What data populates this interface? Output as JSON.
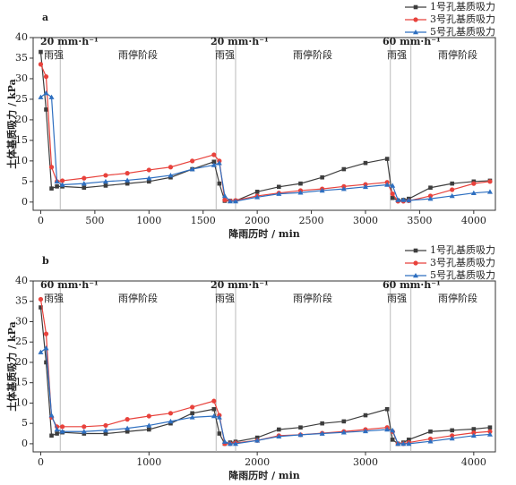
{
  "chart_data": [
    {
      "type": "line",
      "panel_label": "a",
      "xlabel": "降雨历时 / min",
      "ylabel": "土体基质吸力 / kPa",
      "xlim": [
        -70,
        4200
      ],
      "ylim": [
        -2,
        40
      ],
      "xticks": [
        0,
        500,
        1000,
        1500,
        2000,
        2500,
        3000,
        3500,
        4000
      ],
      "yticks": [
        0,
        5,
        10,
        15,
        20,
        25,
        30,
        35,
        40
      ],
      "vlines": [
        180,
        1620,
        1800,
        3230,
        3420
      ],
      "annotations": [
        "20 mm·h⁻¹",
        "雨强",
        "雨停阶段",
        "20 mm·h⁻¹",
        "雨强",
        "雨停阶段",
        "60 mm·h⁻¹",
        "雨强",
        "雨停阶段"
      ],
      "x": [
        0,
        50,
        100,
        150,
        200,
        400,
        600,
        800,
        1000,
        1200,
        1400,
        1600,
        1650,
        1700,
        1750,
        1800,
        2000,
        2200,
        2400,
        2600,
        2800,
        3000,
        3200,
        3250,
        3300,
        3350,
        3400,
        3600,
        3800,
        4000,
        4150
      ],
      "series": [
        {
          "name": "1号孔基质吸力",
          "color": "#3d3d3d",
          "marker": "square",
          "values": [
            36.5,
            22.5,
            3.3,
            3.8,
            3.8,
            3.5,
            4,
            4.5,
            5,
            6,
            8,
            9.8,
            4.5,
            0.3,
            0.3,
            0.3,
            2.5,
            3.7,
            4.5,
            6,
            8,
            9.5,
            10.5,
            1.0,
            0.4,
            0.5,
            0.8,
            3.5,
            4.5,
            5,
            5.2
          ]
        },
        {
          "name": "3号孔基质吸力",
          "color": "#e8423c",
          "marker": "circle",
          "values": [
            33.5,
            30.5,
            8.5,
            5,
            5.2,
            5.8,
            6.5,
            7,
            7.8,
            8.5,
            10,
            11.5,
            10,
            0.5,
            0.3,
            0.4,
            1.5,
            2.2,
            2.8,
            3.2,
            3.8,
            4.3,
            4.8,
            2,
            0.2,
            0.2,
            0.3,
            1.5,
            3,
            4.5,
            5
          ]
        },
        {
          "name": "5号孔基质吸力",
          "color": "#2e6fc0",
          "marker": "triangle",
          "values": [
            25.5,
            26.5,
            25.5,
            5,
            4.2,
            4.5,
            5,
            5.3,
            5.8,
            6.5,
            8,
            9,
            9.5,
            1.5,
            0.2,
            0.2,
            1.2,
            2,
            2.3,
            2.8,
            3.2,
            3.7,
            4.2,
            4,
            0.5,
            0.5,
            0.4,
            0.8,
            1.5,
            2.2,
            2.5
          ]
        }
      ]
    },
    {
      "type": "line",
      "panel_label": "b",
      "xlabel": "降雨历时 / min",
      "ylabel": "土体基质吸力 / kPa",
      "xlim": [
        -70,
        4200
      ],
      "ylim": [
        -2,
        40
      ],
      "xticks": [
        0,
        1000,
        2000,
        3000,
        4000
      ],
      "yticks": [
        0,
        5,
        10,
        15,
        20,
        25,
        30,
        35,
        40
      ],
      "vlines": [
        180,
        1620,
        1800,
        3230,
        3420
      ],
      "annotations": [
        "60 mm·h⁻¹",
        "雨强",
        "雨停阶段",
        "20 mm·h⁻¹",
        "雨强",
        "雨停阶段",
        "60 mm·h⁻¹",
        "雨强",
        "雨停阶段"
      ],
      "x": [
        0,
        50,
        100,
        150,
        200,
        400,
        600,
        800,
        1000,
        1200,
        1400,
        1600,
        1650,
        1700,
        1750,
        1800,
        2000,
        2200,
        2400,
        2600,
        2800,
        3000,
        3200,
        3250,
        3300,
        3350,
        3400,
        3600,
        3800,
        4000,
        4150
      ],
      "series": [
        {
          "name": "1号孔基质吸力",
          "color": "#3d3d3d",
          "marker": "square",
          "values": [
            33.5,
            20,
            2,
            2.5,
            2.8,
            2.5,
            2.5,
            3,
            3.5,
            5,
            7.5,
            8.5,
            2.5,
            0,
            0.3,
            0.5,
            1.5,
            3.5,
            4,
            5,
            5.5,
            7,
            8.5,
            1,
            0,
            0.3,
            1,
            3,
            3.3,
            3.6,
            4
          ]
        },
        {
          "name": "3号孔基质吸力",
          "color": "#e8423c",
          "marker": "circle",
          "values": [
            35.5,
            27,
            6.5,
            4.2,
            4.2,
            4.2,
            4.5,
            6,
            6.8,
            7.5,
            9,
            10.5,
            7,
            0,
            0,
            0.2,
            0.8,
            2,
            2.2,
            2.6,
            3,
            3.5,
            4,
            3,
            0,
            0,
            0.3,
            1.2,
            2,
            2.7,
            3
          ]
        },
        {
          "name": "5号孔基质吸力",
          "color": "#2e6fc0",
          "marker": "triangle",
          "values": [
            22.5,
            23.5,
            7,
            3.5,
            3,
            3,
            3.3,
            3.8,
            4.5,
            5.5,
            6.5,
            6.8,
            6.5,
            0.5,
            0,
            0,
            0.8,
            1.8,
            2.2,
            2.5,
            2.8,
            3.1,
            3.5,
            3.3,
            0,
            0,
            0,
            0.6,
            1.3,
            2,
            2.3
          ]
        }
      ]
    }
  ]
}
